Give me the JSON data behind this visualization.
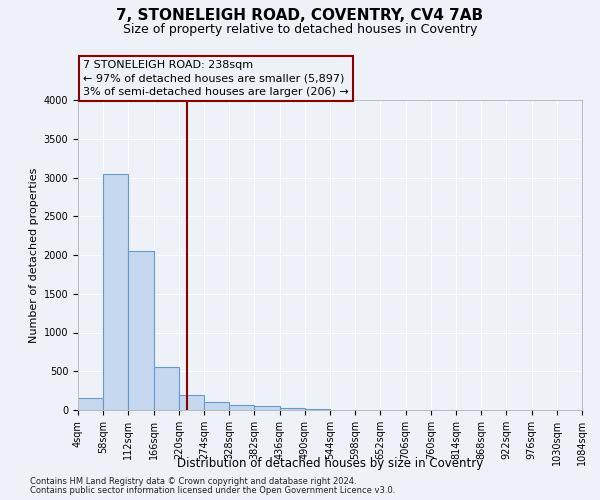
{
  "title1": "7, STONELEIGH ROAD, COVENTRY, CV4 7AB",
  "title2": "Size of property relative to detached houses in Coventry",
  "xlabel": "Distribution of detached houses by size in Coventry",
  "ylabel": "Number of detached properties",
  "bin_edges": [
    4,
    58,
    112,
    166,
    220,
    274,
    328,
    382,
    436,
    490,
    544,
    598,
    652,
    706,
    760,
    814,
    868,
    922,
    976,
    1030,
    1084
  ],
  "bar_heights": [
    150,
    3050,
    2050,
    550,
    200,
    100,
    60,
    50,
    20,
    10,
    0,
    0,
    0,
    0,
    0,
    0,
    0,
    0,
    0,
    0
  ],
  "bar_color": "#c5d8f0",
  "bar_edge_color": "#6699cc",
  "vline_x": 238,
  "vline_color": "#8b0000",
  "ylim": [
    0,
    4000
  ],
  "yticks": [
    0,
    500,
    1000,
    1500,
    2000,
    2500,
    3000,
    3500,
    4000
  ],
  "annotation_line1": "7 STONELEIGH ROAD: 238sqm",
  "annotation_line2": "← 97% of detached houses are smaller (5,897)",
  "annotation_line3": "3% of semi-detached houses are larger (206) →",
  "footnote1": "Contains HM Land Registry data © Crown copyright and database right 2024.",
  "footnote2": "Contains public sector information licensed under the Open Government Licence v3.0.",
  "background_color": "#eef2f8",
  "grid_color": "#ffffff",
  "title1_fontsize": 11,
  "title2_fontsize": 9,
  "tick_fontsize": 7,
  "ylabel_fontsize": 8,
  "xlabel_fontsize": 8.5,
  "annot_fontsize": 8,
  "footnote_fontsize": 6
}
